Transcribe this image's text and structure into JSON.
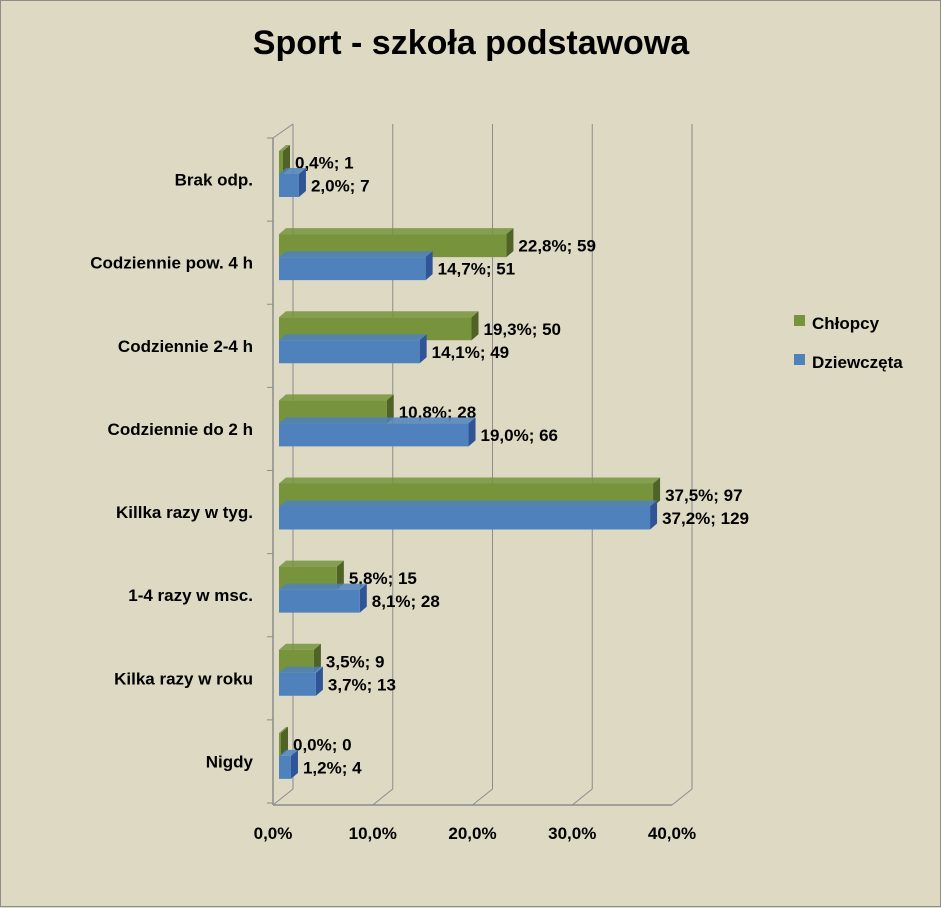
{
  "chart_data": {
    "type": "bar",
    "orientation": "horizontal",
    "style": "3d-clustered",
    "title": "Sport - szkoła podstawowa",
    "categories": [
      "Brak odp.",
      "Codziennie pow. 4 h",
      "Codziennie 2-4 h",
      "Codziennie do 2 h",
      "Killka razy w tyg.",
      "1-4 razy w msc.",
      "Kilka razy w roku",
      "Nigdy"
    ],
    "series": [
      {
        "name": "Chłopcy",
        "color": "#77933c",
        "values": [
          0.4,
          22.8,
          19.3,
          10.8,
          37.5,
          5.8,
          3.5,
          0.0
        ],
        "labels": [
          "0,4%; 1",
          "22,8%; 59",
          "19,3%; 50",
          "10,8%; 28",
          "37,5%; 97",
          "5,8%; 15",
          "3,5%; 9",
          "0,0%; 0"
        ]
      },
      {
        "name": "Dziewczęta",
        "color": "#4f81bd",
        "values": [
          2.0,
          14.7,
          14.1,
          19.0,
          37.2,
          8.1,
          3.7,
          1.2
        ],
        "labels": [
          "2,0%; 7",
          "14,7%; 51",
          "14,1%; 49",
          "19,0%; 66",
          "37,2%; 129",
          "8,1%; 28",
          "3,7%; 13",
          "1,2%; 4"
        ]
      }
    ],
    "x_ticks": [
      "0,0%",
      "10,0%",
      "20,0%",
      "30,0%",
      "40,0%"
    ],
    "xlim": [
      0,
      40
    ],
    "grid": true,
    "legend_position": "right"
  }
}
